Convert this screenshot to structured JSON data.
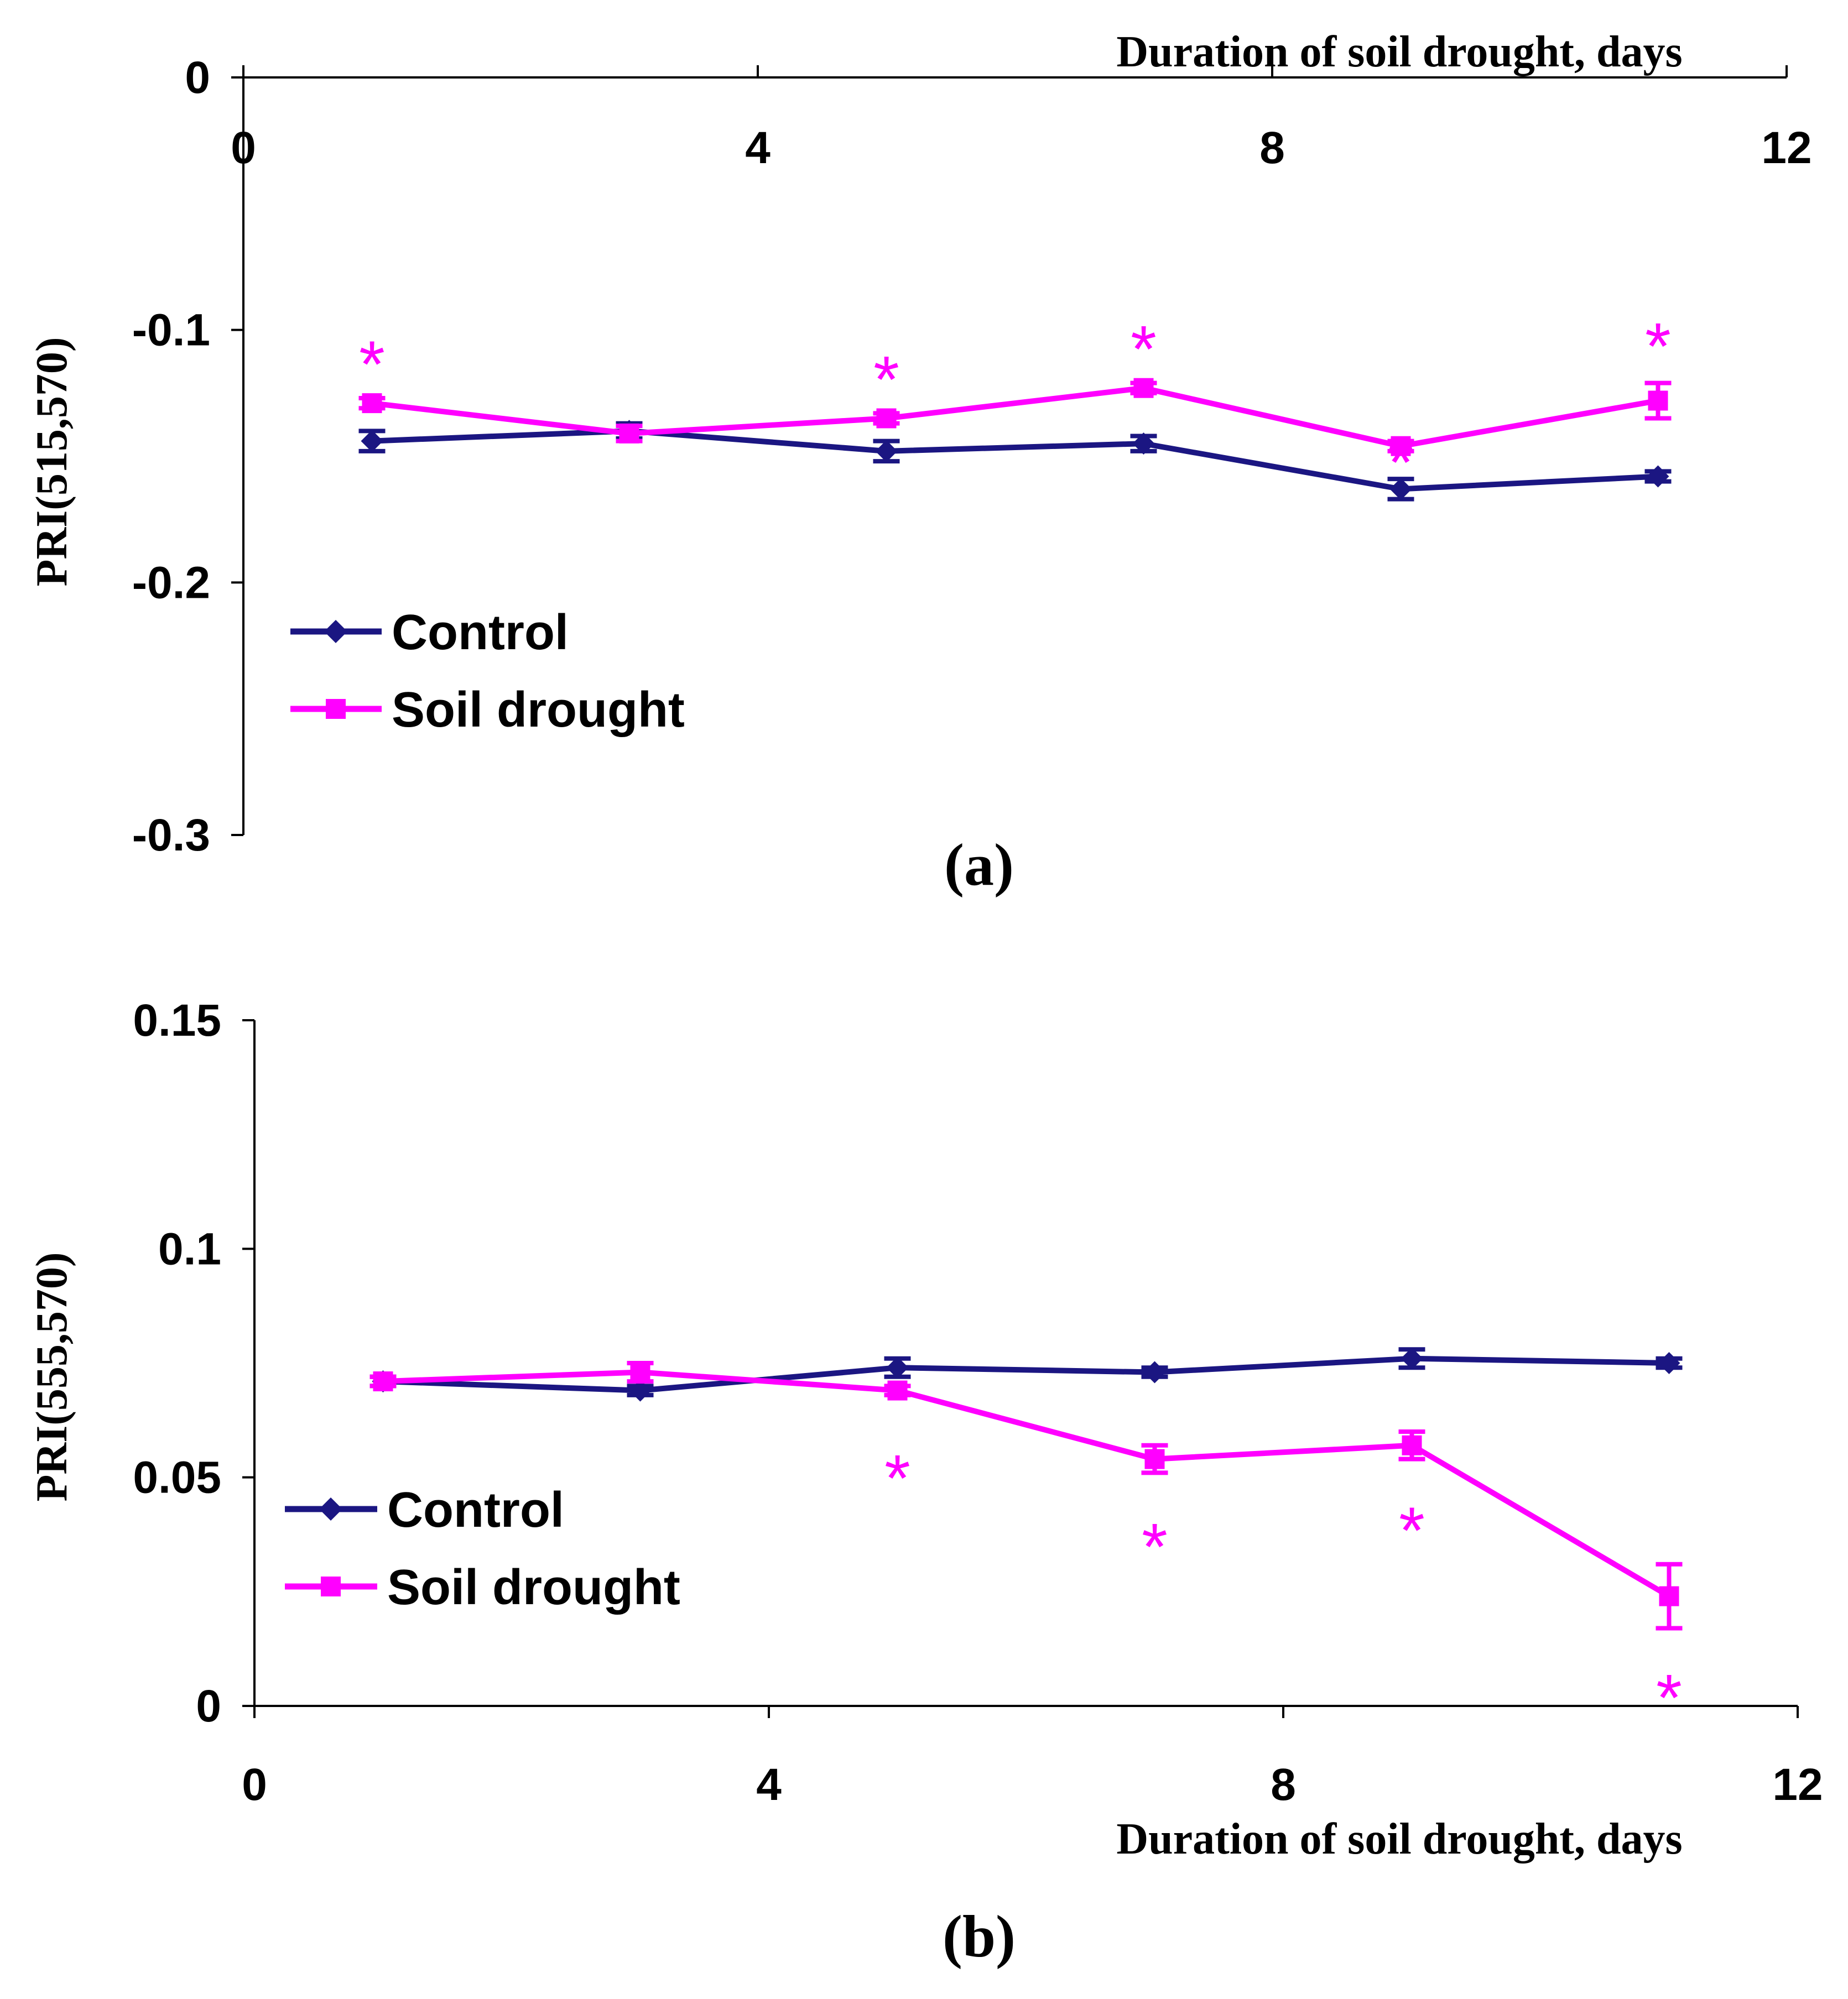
{
  "colors": {
    "control": "#1B1682",
    "drought": "#FF00FF",
    "axis": "#000000"
  },
  "chart_data": [
    {
      "type": "line",
      "panel_label": "(a)",
      "xlabel": "Duration of soil drought, days",
      "ylabel": "PRI(515,570)",
      "xlim": [
        0,
        12
      ],
      "ylim": [
        -0.3,
        0
      ],
      "x_ticks": [
        "0",
        "4",
        "8",
        "12"
      ],
      "y_ticks": [
        "0",
        "-0.1",
        "-0.2",
        "-0.3"
      ],
      "x": [
        1,
        3,
        5,
        7,
        9,
        11
      ],
      "series": [
        {
          "name": "Control",
          "marker": "diamond",
          "values": [
            -0.144,
            -0.14,
            -0.148,
            -0.145,
            -0.163,
            -0.158
          ],
          "errors": [
            0.004,
            0.003,
            0.004,
            0.003,
            0.004,
            0.002
          ]
        },
        {
          "name": "Soil drought",
          "marker": "square",
          "values": [
            -0.129,
            -0.141,
            -0.135,
            -0.123,
            -0.146,
            -0.128
          ],
          "errors": [
            0.002,
            0.003,
            0.002,
            0.002,
            0.002,
            0.007
          ],
          "significant": [
            true,
            false,
            true,
            true,
            true,
            true
          ]
        }
      ],
      "legend": [
        "Control",
        "Soil drought"
      ],
      "legend_position": "lower-left"
    },
    {
      "type": "line",
      "panel_label": "(b)",
      "xlabel": "Duration of soil drought, days",
      "ylabel": "PRI(555,570)",
      "xlim": [
        0,
        12
      ],
      "ylim": [
        0,
        0.15
      ],
      "x_ticks": [
        "0",
        "4",
        "8",
        "12"
      ],
      "y_ticks": [
        "0",
        "0.05",
        "0.1",
        "0.15"
      ],
      "x": [
        1,
        3,
        5,
        7,
        9,
        11
      ],
      "series": [
        {
          "name": "Control",
          "marker": "diamond",
          "values": [
            0.071,
            0.069,
            0.074,
            0.073,
            0.076,
            0.075
          ],
          "errors": [
            0.001,
            0.001,
            0.002,
            0.001,
            0.002,
            0.001
          ]
        },
        {
          "name": "Soil drought",
          "marker": "square",
          "values": [
            0.071,
            0.073,
            0.069,
            0.054,
            0.057,
            0.024
          ],
          "errors": [
            0.001,
            0.002,
            0.001,
            0.003,
            0.003,
            0.007
          ],
          "significant": [
            false,
            false,
            true,
            true,
            true,
            true
          ]
        }
      ],
      "legend": [
        "Control",
        "Soil drought"
      ],
      "legend_position": "lower-left"
    }
  ]
}
